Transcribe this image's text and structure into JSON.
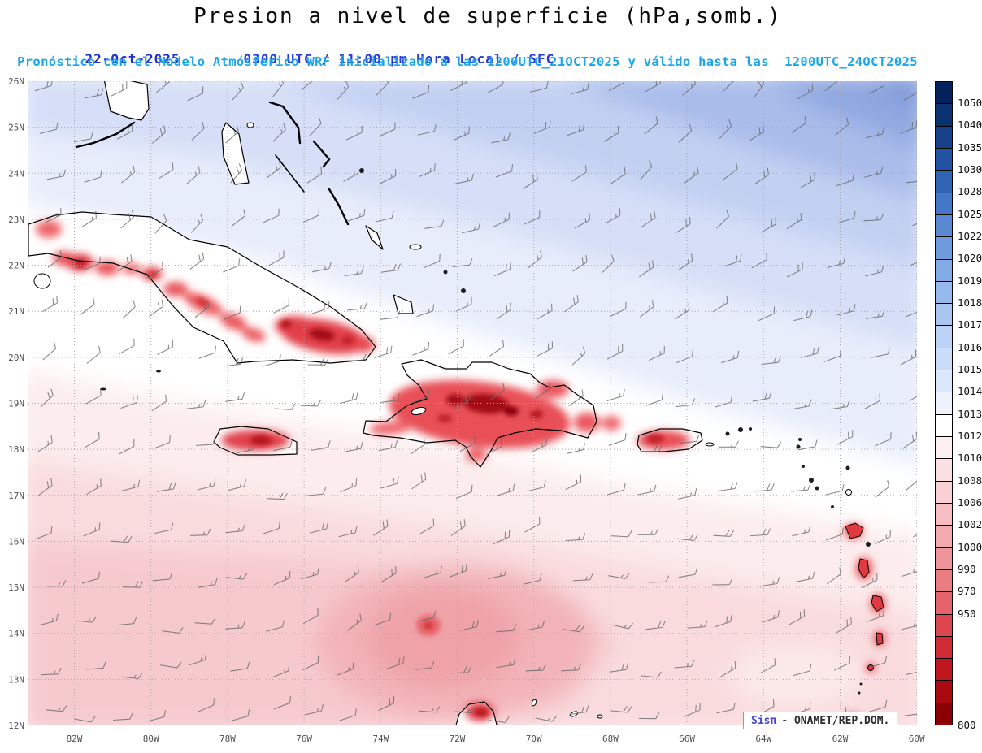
{
  "header": {
    "title": "Presion a nivel de superficie (hPa,somb.)",
    "date": "22-Oct-2025",
    "time": "0300 UTC / 11:00 pm Hora Local / SFC",
    "forecast": "Pronóstico con el Modelo Atmósferico WRF inicializado a las 1200UTC_21OCT2025 y válido hasta las  1200UTC_24OCT2025"
  },
  "watermark": {
    "brand": "Sisπ",
    "text": "- ONAMET/REP.DOM."
  },
  "chart_data": {
    "type": "heatmap",
    "title": "Presion a nivel de superficie (hPa,somb.)",
    "valid": "22-Oct-2025 0300 UTC / 11:00 pm Hora Local / SFC",
    "model": "WRF",
    "initialized": "1200UTC_21OCT2025",
    "valid_until": "1200UTC_24OCT2025",
    "units": "hPa",
    "lat_ticks": [
      "26N",
      "25N",
      "24N",
      "23N",
      "22N",
      "21N",
      "20N",
      "19N",
      "18N",
      "17N",
      "16N",
      "15N",
      "14N",
      "13N",
      "12N"
    ],
    "lon_ticks": [
      "82W",
      "80W",
      "78W",
      "76W",
      "74W",
      "72W",
      "70W",
      "68W",
      "66W",
      "64W",
      "62W",
      "60W"
    ],
    "lat_range": [
      12,
      26
    ],
    "lon_range": [
      -82,
      -60
    ],
    "grid": "dotted, 1° latitude / 2° longitude",
    "colorbar": {
      "units": "hPa",
      "levels": [
        1050,
        1040,
        1035,
        1030,
        1028,
        1025,
        1022,
        1020,
        1019,
        1018,
        1017,
        1016,
        1015,
        1014,
        1013,
        1012,
        1010,
        1008,
        1006,
        1002,
        1000,
        990,
        970,
        950,
        800
      ],
      "segments": [
        {
          "color": "#05215c",
          "label": "1050"
        },
        {
          "color": "#0b3270",
          "label": "1040"
        },
        {
          "color": "#164189",
          "label": "1035"
        },
        {
          "color": "#2253a2",
          "label": "1030"
        },
        {
          "color": "#3064b5",
          "label": "1028"
        },
        {
          "color": "#4477c6",
          "label": "1025"
        },
        {
          "color": "#5889d2",
          "label": "1022"
        },
        {
          "color": "#6d9bdd",
          "label": "1020"
        },
        {
          "color": "#82abe5",
          "label": "1019"
        },
        {
          "color": "#96baec",
          "label": "1018"
        },
        {
          "color": "#a9c6f1",
          "label": "1017"
        },
        {
          "color": "#bbd2f6",
          "label": "1016"
        },
        {
          "color": "#cbdcf9",
          "label": "1015"
        },
        {
          "color": "#dde7fb",
          "label": "1014"
        },
        {
          "color": "#eef2fd",
          "label": "1013"
        },
        {
          "color": "#ffffff",
          "label": "1012"
        },
        {
          "color": "#fdeff0",
          "label": "1010"
        },
        {
          "color": "#fbe0e2",
          "label": "1008"
        },
        {
          "color": "#f9d0d3",
          "label": "1006"
        },
        {
          "color": "#f6bec2",
          "label": "1002"
        },
        {
          "color": "#f3abaf",
          "label": "1000"
        },
        {
          "color": "#ef959a",
          "label": "990"
        },
        {
          "color": "#ea7d82",
          "label": "970"
        },
        {
          "color": "#e4636a",
          "label": "950"
        },
        {
          "color": "#dc464e",
          "label": ""
        },
        {
          "color": "#d02b33",
          "label": ""
        },
        {
          "color": "#c0161e",
          "label": ""
        },
        {
          "color": "#a80a10",
          "label": ""
        },
        {
          "color": "#8c0005",
          "label": "800"
        }
      ]
    },
    "wind_barbs": "Gray surface wind barbs over whole domain; easterly to northeasterly trade winds ~10-20 kt",
    "features": [
      {
        "region": "Upper-right / NW Atlantic (north of ~22N, east of ~72W)",
        "pressure_hPa": "1018-1025",
        "shading": "blue"
      },
      {
        "region": "Diagonal band from ~23N,82W to ~17N,60W",
        "pressure_hPa": "1013-1015",
        "shading": "white"
      },
      {
        "region": "Caribbean Sea south of the white band",
        "pressure_hPa": "1008-1012",
        "shading": "light pink"
      },
      {
        "region": "Broad low center near 73W,14.5N",
        "pressure_hPa": "1002-1006",
        "shading": "deeper pink with small red core near 72.7W,14.2N"
      },
      {
        "region": "Island interiors (Cuba, Jamaica, Hispaniola, Puerto Rico, Lesser Antilles, Guajira)",
        "pressure_hPa": "<=1006, local minima <990 over Hispaniola and E. Cuba",
        "shading": "red cores outlined by coastlines"
      }
    ],
    "landmasses": [
      "Florida tip & Keys",
      "Bahamas",
      "Cuba",
      "Isla de la Juventud",
      "Cayman Is.",
      "Jamaica",
      "Hispaniola",
      "Puerto Rico",
      "Virgin Is.",
      "Lesser Antilles arc",
      "Aruba/Curaçao/Bonaire",
      "Guajira Peninsula"
    ]
  }
}
